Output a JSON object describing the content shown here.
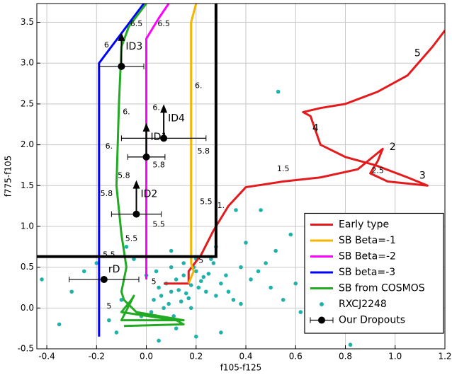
{
  "chart_data": {
    "type": "line",
    "x_label": "f105-f125",
    "y_label": "f775-f105",
    "xlim": [
      -0.44,
      1.2
    ],
    "ylim": [
      -0.5,
      3.73
    ],
    "xticks": [
      -0.4,
      -0.2,
      {
        "value": 0,
        "label": "0.0"
      },
      0.2,
      0.4,
      0.6,
      0.8,
      {
        "value": 1,
        "label": "1.0"
      },
      1.2
    ],
    "yticks": [
      -0.5,
      {
        "value": 0,
        "label": "0.0"
      },
      0.5,
      {
        "value": 1,
        "label": "1.0"
      },
      1.5,
      {
        "value": 2,
        "label": "2.0"
      },
      2.5,
      {
        "value": 3,
        "label": "3.0"
      },
      3.5
    ],
    "grid": true,
    "legend": "lower right",
    "series": [
      {
        "name": "Early type",
        "type": "line",
        "color": "#e41a1c",
        "x": [
          0.07,
          0.17,
          0.17,
          0.22,
          0.27,
          0.33,
          0.4,
          0.55,
          0.7,
          0.85,
          0.95,
          0.93,
          0.9,
          0.97,
          1.13,
          1.05,
          0.92,
          0.8,
          0.7,
          0.66,
          0.63,
          0.7,
          0.8,
          0.93,
          1.05,
          1.15,
          1.2
        ],
        "y": [
          0.3,
          0.3,
          0.45,
          0.65,
          0.95,
          1.25,
          1.48,
          1.55,
          1.6,
          1.7,
          1.95,
          1.8,
          1.65,
          1.55,
          1.5,
          1.6,
          1.75,
          1.85,
          2.0,
          2.35,
          2.4,
          2.45,
          2.5,
          2.65,
          2.85,
          3.2,
          3.4
        ]
      },
      {
        "name": "SB Beta=-1",
        "type": "line",
        "color": "#f5b400",
        "x": [
          0.2,
          0.18,
          0.18,
          0.19,
          0.17
        ],
        "y": [
          3.73,
          3.5,
          0.55,
          0.45,
          0.3
        ]
      },
      {
        "name": "SB Beta=-2",
        "type": "line",
        "color": "#ff00ff",
        "x": [
          0.09,
          0.05,
          0.0,
          0.0
        ],
        "y": [
          3.73,
          3.55,
          3.3,
          0.35
        ]
      },
      {
        "name": "SB beta=-3",
        "type": "line",
        "color": "#0000ff",
        "x": [
          -0.01,
          -0.19,
          -0.19
        ],
        "y": [
          3.73,
          3.0,
          -0.35
        ]
      },
      {
        "name": "SB from COSMOS",
        "type": "line",
        "color": "#22aa22",
        "x": [
          0.0,
          -0.07,
          -0.1,
          -0.11,
          -0.12,
          -0.1,
          -0.08,
          -0.1,
          -0.09,
          -0.04,
          0.15,
          -0.1,
          -0.05,
          -0.06,
          -0.1,
          0.12,
          0.15,
          -0.09
        ],
        "y": [
          3.73,
          3.45,
          3.2,
          2.5,
          1.5,
          0.9,
          0.5,
          0.2,
          0.1,
          -0.05,
          -0.15,
          -0.15,
          0.15,
          0.1,
          -0.05,
          -0.15,
          -0.2,
          -0.22
        ]
      },
      {
        "name": "RXCJ2248",
        "type": "scatter",
        "color": "#20b2aa",
        "x": [
          0.05,
          0.08,
          0.1,
          0.12,
          0.15,
          0.18,
          0.2,
          0.22,
          0.25,
          0.03,
          0.06,
          0.09,
          0.13,
          0.16,
          0.19,
          0.23,
          0.27,
          0.3,
          0.02,
          0.07,
          0.11,
          0.14,
          0.17,
          0.21,
          0.24,
          0.28,
          0.32,
          0.35,
          0.0,
          0.04,
          0.1,
          0.15,
          0.2,
          0.26,
          0.33,
          0.38,
          0.42,
          0.45,
          0.5,
          0.55,
          0.6,
          0.48,
          0.62,
          0.7,
          0.75,
          0.8,
          0.52,
          0.4,
          0.36,
          0.58,
          -0.05,
          -0.1,
          -0.15,
          -0.2,
          -0.25,
          -0.3,
          -0.42,
          -0.35,
          -0.12,
          -0.02,
          0.12,
          0.2,
          0.3,
          0.65,
          0.82,
          1.05,
          1.17,
          0.46,
          0.9,
          0.53,
          0.38,
          0.28,
          0.05,
          0.1,
          -0.08,
          0.18
        ],
        "y": [
          0.25,
          0.3,
          0.2,
          0.35,
          0.4,
          0.28,
          0.45,
          0.33,
          0.42,
          0.1,
          0.15,
          0.05,
          0.22,
          0.18,
          0.5,
          0.38,
          0.55,
          0.3,
          -0.05,
          0.0,
          -0.1,
          0.08,
          0.12,
          0.25,
          0.2,
          0.15,
          0.4,
          0.1,
          0.4,
          0.45,
          0.5,
          0.55,
          0.6,
          0.6,
          0.2,
          0.05,
          0.35,
          0.45,
          0.25,
          0.1,
          0.3,
          0.55,
          -0.05,
          0.2,
          0.4,
          0.15,
          0.7,
          0.8,
          1.2,
          0.9,
          0.6,
          0.1,
          -0.15,
          0.55,
          0.45,
          0.2,
          0.35,
          -0.2,
          -0.3,
          -0.1,
          -0.25,
          -0.35,
          -0.3,
          -0.2,
          -0.45,
          -0.1,
          0.05,
          1.2,
          1.05,
          2.65,
          0.5,
          0.75,
          -0.4,
          0.7,
          0.75,
          0.0
        ]
      },
      {
        "name": "Our Dropouts",
        "type": "errorbar",
        "color": "#000000",
        "x": [
          -0.1,
          0.07,
          0.0,
          -0.04,
          -0.17
        ],
        "y": [
          2.96,
          2.08,
          1.85,
          1.15,
          0.35
        ],
        "xerr": [
          0.09,
          0.17,
          0.075,
          0.1,
          0.14
        ],
        "labels": [
          "ID3",
          "ID4",
          "ID1",
          "ID2",
          "rD"
        ],
        "lower_limit": [
          true,
          true,
          true,
          true,
          false
        ]
      }
    ],
    "selection_box": {
      "color": "#000000",
      "x": [
        -0.44,
        0.28,
        0.28
      ],
      "y": [
        0.63,
        0.63,
        3.73
      ]
    },
    "annotations": [
      {
        "text": "5",
        "x": 1.09,
        "y": 3.12
      },
      {
        "text": "4",
        "x": 0.68,
        "y": 2.2
      },
      {
        "text": "2",
        "x": 0.99,
        "y": 1.97
      },
      {
        "text": "2.5",
        "x": 0.93,
        "y": 1.68
      },
      {
        "text": "3",
        "x": 1.11,
        "y": 1.62
      },
      {
        "text": "1.5",
        "x": 0.55,
        "y": 1.7
      },
      {
        "text": "1.",
        "x": 0.3,
        "y": 1.25
      },
      {
        "text": "6.5",
        "x": -0.04,
        "y": 3.48
      },
      {
        "text": "6.5",
        "x": 0.07,
        "y": 3.48
      },
      {
        "text": "6",
        "x": -0.16,
        "y": 3.22
      },
      {
        "text": "6.",
        "x": 0.21,
        "y": 2.72
      },
      {
        "text": "6.",
        "x": -0.08,
        "y": 2.4
      },
      {
        "text": "6.",
        "x": 0.04,
        "y": 2.45
      },
      {
        "text": "6.",
        "x": -0.15,
        "y": 1.98
      },
      {
        "text": "5.8",
        "x": 0.23,
        "y": 1.92
      },
      {
        "text": "5.8",
        "x": 0.05,
        "y": 1.75
      },
      {
        "text": "5.8",
        "x": -0.09,
        "y": 1.62
      },
      {
        "text": "5.8",
        "x": -0.16,
        "y": 1.4
      },
      {
        "text": "5.5",
        "x": 0.24,
        "y": 1.3
      },
      {
        "text": "5.5",
        "x": 0.05,
        "y": 1.02
      },
      {
        "text": "5.5",
        "x": -0.06,
        "y": 0.85
      },
      {
        "text": "5.5",
        "x": -0.15,
        "y": 0.65
      },
      {
        "text": "5",
        "x": 0.22,
        "y": 0.58
      },
      {
        "text": "5",
        "x": 0.03,
        "y": 0.32
      },
      {
        "text": "5",
        "x": -0.15,
        "y": 0.02
      }
    ]
  }
}
